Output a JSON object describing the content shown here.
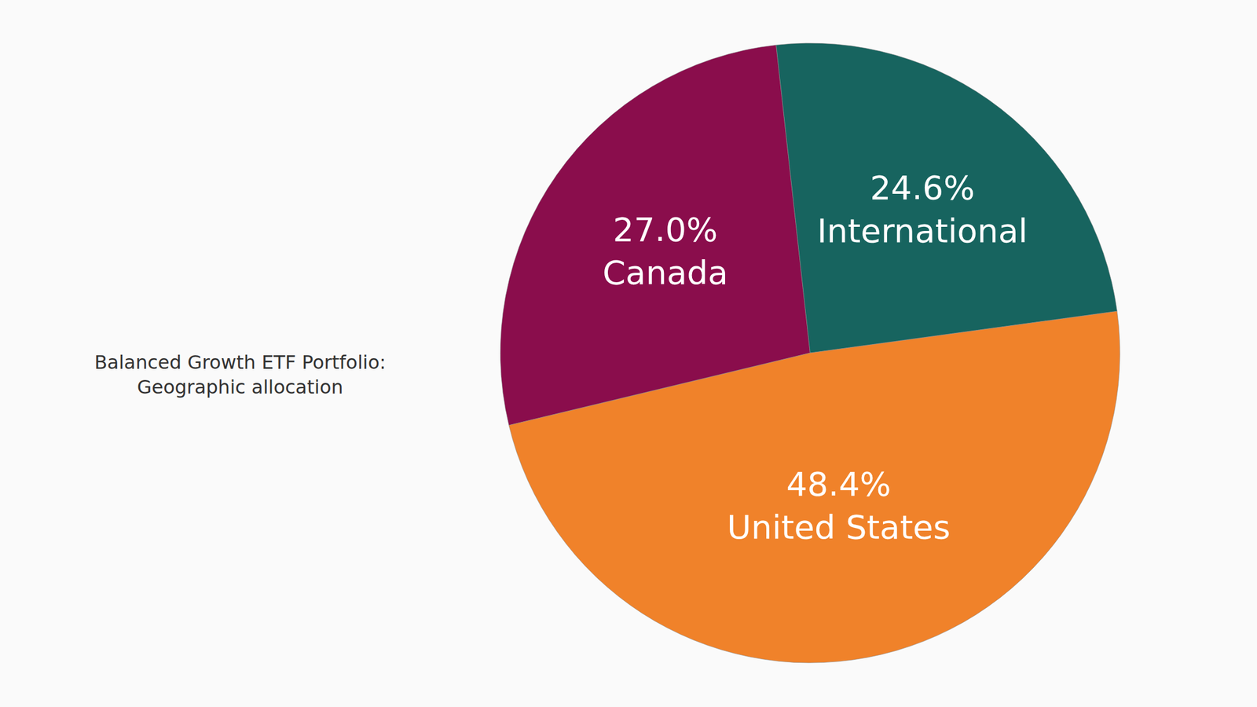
{
  "chart_data": {
    "type": "pie",
    "title": "Balanced Growth ETF Portfolio: Geographic allocation",
    "categories": [
      "Canada",
      "International",
      "United States"
    ],
    "values": [
      27.0,
      24.6,
      48.4
    ],
    "value_labels": [
      "27.0%",
      "24.6%",
      "48.4%"
    ],
    "colors": [
      "#8a0d4c",
      "#17645f",
      "#f0822a"
    ],
    "data_labels": true
  }
}
